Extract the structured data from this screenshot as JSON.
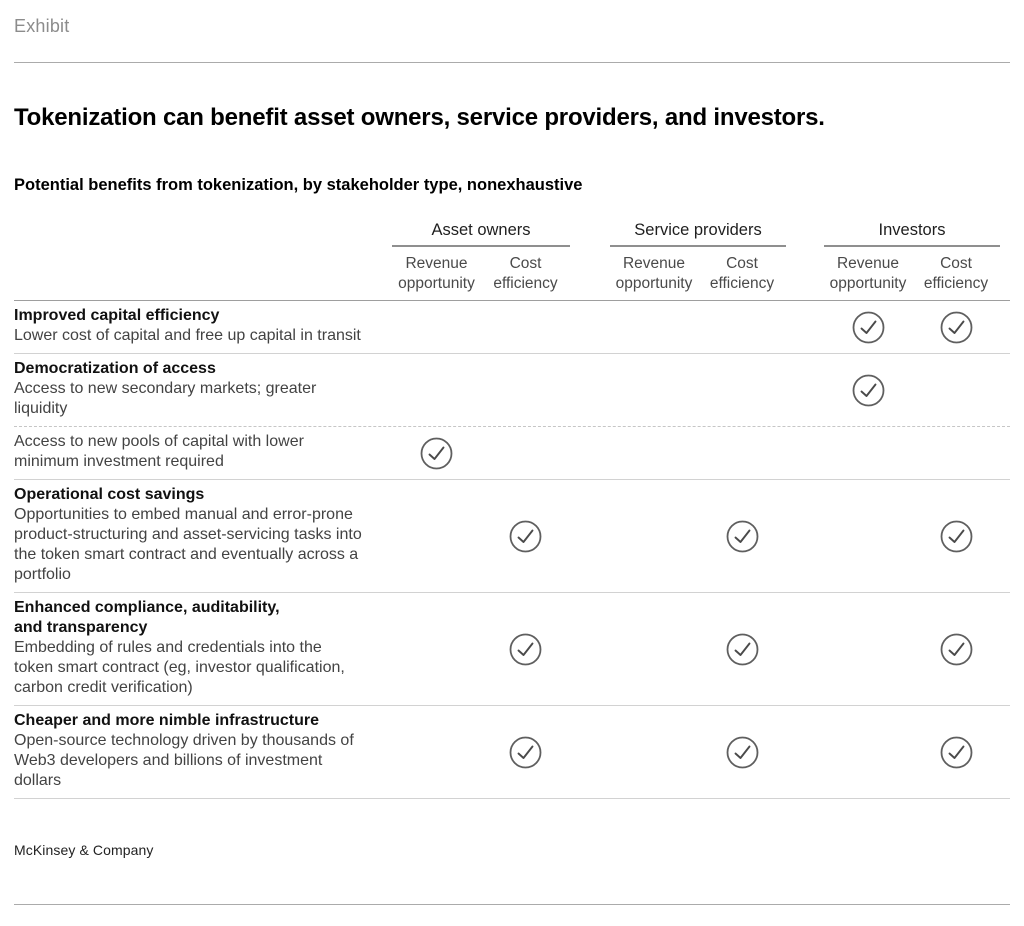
{
  "page": {
    "exhibit_label": "Exhibit",
    "title": "Tokenization can benefit asset owners, service providers, and investors.",
    "subtitle": "Potential benefits from tokenization, by stakeholder type, nonexhaustive",
    "footer": "McKinsey & Company"
  },
  "table": {
    "groups": [
      {
        "label": "Asset owners",
        "columns": [
          "Revenue opportunity",
          "Cost efficiency"
        ]
      },
      {
        "label": "Service providers",
        "columns": [
          "Revenue opportunity",
          "Cost efficiency"
        ]
      },
      {
        "label": "Investors",
        "columns": [
          "Revenue opportunity",
          "Cost efficiency"
        ]
      }
    ],
    "column_keys": [
      "asset-owners-revenue-opportunity",
      "asset-owners-cost-efficiency",
      "service-providers-revenue-opportunity",
      "service-providers-cost-efficiency",
      "investors-revenue-opportunity",
      "investors-cost-efficiency"
    ],
    "rows": [
      {
        "title": "Improved capital efficiency",
        "description": "Lower cost of capital and free up capital in transit",
        "checks": [
          false,
          false,
          false,
          false,
          true,
          true
        ],
        "separator_after": "solid"
      },
      {
        "title": "Democratization of access",
        "description": "Access to new secondary markets; greater liquidity",
        "checks": [
          false,
          false,
          false,
          false,
          true,
          false
        ],
        "separator_after": "dashed"
      },
      {
        "title": "",
        "description": "Access to new pools of capital with lower minimum investment required",
        "checks": [
          true,
          false,
          false,
          false,
          false,
          false
        ],
        "separator_after": "solid"
      },
      {
        "title": "Operational cost savings",
        "description": "Opportunities to embed manual and error-prone product-structuring and asset-servicing tasks into the token smart contract and eventually across a portfolio",
        "checks": [
          false,
          true,
          false,
          true,
          false,
          true
        ],
        "separator_after": "solid"
      },
      {
        "title": "Enhanced compliance, auditability,\nand transparency",
        "description": "Embedding of rules and credentials into the token smart contract (eg, investor qualification, carbon credit verification)",
        "checks": [
          false,
          true,
          false,
          true,
          false,
          true
        ],
        "separator_after": "solid"
      },
      {
        "title": "Cheaper and more nimble infrastructure",
        "description": "Open-source technology driven by thousands of Web3 developers and billions of investment dollars",
        "checks": [
          false,
          true,
          false,
          true,
          false,
          true
        ],
        "separator_after": "solid"
      }
    ]
  },
  "icons": {
    "check": "check-circle-icon"
  },
  "colors": {
    "text_primary": "#111111",
    "text_secondary": "#434343",
    "text_muted": "#8c8c8c",
    "rule": "#ababab",
    "row_separator": "#d2d2d2",
    "header_underline": "#8f8f8f",
    "check_stroke": "#5f5f5f"
  }
}
